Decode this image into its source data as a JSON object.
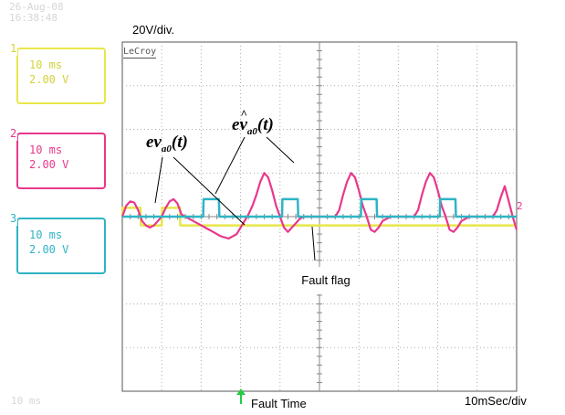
{
  "header": {
    "date": "26-Aug-08",
    "time": "16:38:48",
    "volts_per_div": "20V/div.",
    "brand": "LeCroy"
  },
  "channels": [
    {
      "number": "1",
      "timebase": "10 ms",
      "volts": "2.00 V",
      "color": "#e8e64a"
    },
    {
      "number": "2",
      "timebase": "10 ms",
      "volts": "2.00 V",
      "color": "#e8388a"
    },
    {
      "number": "3",
      "timebase": "10 ms",
      "volts": "2.00 V",
      "color": "#2fb4c4"
    }
  ],
  "annotations": {
    "fault_flag": "Fault flag",
    "fault_time": "Fault Time",
    "time_per_div": "10mSec/div",
    "bottom_left": "10 ms",
    "marker_2": "2",
    "eq1_main": "ev",
    "eq1_sub": "a0",
    "eq1_arg": "(t)",
    "eq2_main": "e",
    "eq2_hat": "v",
    "eq2_sub": "a0",
    "eq2_arg": "(t)"
  },
  "chart_data": {
    "type": "line",
    "title": "",
    "xlabel": "10mSec/div",
    "ylabel": "20V/div.",
    "grid": true,
    "xlim": [
      0,
      100
    ],
    "ylim": [
      -80,
      80
    ],
    "unit_x": "ms",
    "unit_y": "V",
    "fault_time_ms": 30,
    "series": [
      {
        "name": "",
        "color": "#e8e64a",
        "x": [
          0,
          0.1,
          4.6,
          4.7,
          10,
          10.1,
          14.6,
          14.7,
          30,
          30.1,
          100
        ],
        "y": [
          0,
          4,
          4,
          -4,
          -4,
          4,
          4,
          -4,
          -4,
          -4,
          -4
        ]
      },
      {
        "name": "",
        "color": "#e8388a",
        "x": [
          0,
          1,
          2,
          3,
          4,
          4.6,
          5,
          6,
          7,
          8,
          9,
          10,
          11,
          12,
          13,
          14,
          14.6,
          15,
          17,
          19,
          21,
          23,
          25,
          27,
          29,
          30,
          31,
          32,
          33,
          34,
          35,
          36,
          37,
          38,
          39,
          40,
          41,
          42,
          43,
          44,
          45,
          46,
          48,
          50,
          52,
          54,
          55,
          56,
          57,
          58,
          59,
          60,
          61,
          62,
          63,
          64,
          65,
          66,
          68,
          70,
          72,
          74,
          75,
          76,
          77,
          78,
          79,
          80,
          81,
          82,
          83,
          84,
          85,
          86,
          88,
          90,
          92,
          94,
          95,
          96,
          97,
          98,
          99,
          100
        ],
        "y": [
          0,
          5,
          7,
          6.5,
          3,
          0,
          -2,
          -4,
          -5,
          -4,
          -2,
          0,
          4,
          7,
          8,
          6,
          3,
          1,
          -1,
          -3,
          -5,
          -7,
          -9,
          -10,
          -8,
          -5,
          -2,
          1,
          5,
          10,
          16,
          20,
          18,
          12,
          5,
          0,
          -5,
          -7,
          -5,
          -3,
          -1,
          0,
          0,
          0,
          0,
          0,
          3,
          10,
          16,
          20,
          18,
          12,
          5,
          0,
          -6,
          -7,
          -5,
          -2,
          0,
          0,
          0,
          0,
          3,
          10,
          16,
          20,
          18,
          12,
          5,
          0,
          -6,
          -7,
          -5,
          -2,
          0,
          0,
          0,
          0,
          3,
          9,
          14,
          7,
          0,
          -6
        ]
      },
      {
        "name": "",
        "color": "#2fb4c4",
        "x": [
          0,
          20.5,
          20.6,
          24.5,
          24.6,
          40.5,
          40.6,
          44.5,
          44.6,
          60.5,
          60.6,
          64.5,
          64.6,
          80.5,
          80.6,
          84.5,
          84.6,
          100
        ],
        "y": [
          0,
          0,
          8,
          8,
          0,
          0,
          8,
          8,
          0,
          0,
          8,
          8,
          0,
          0,
          8,
          8,
          0,
          0
        ]
      }
    ]
  }
}
